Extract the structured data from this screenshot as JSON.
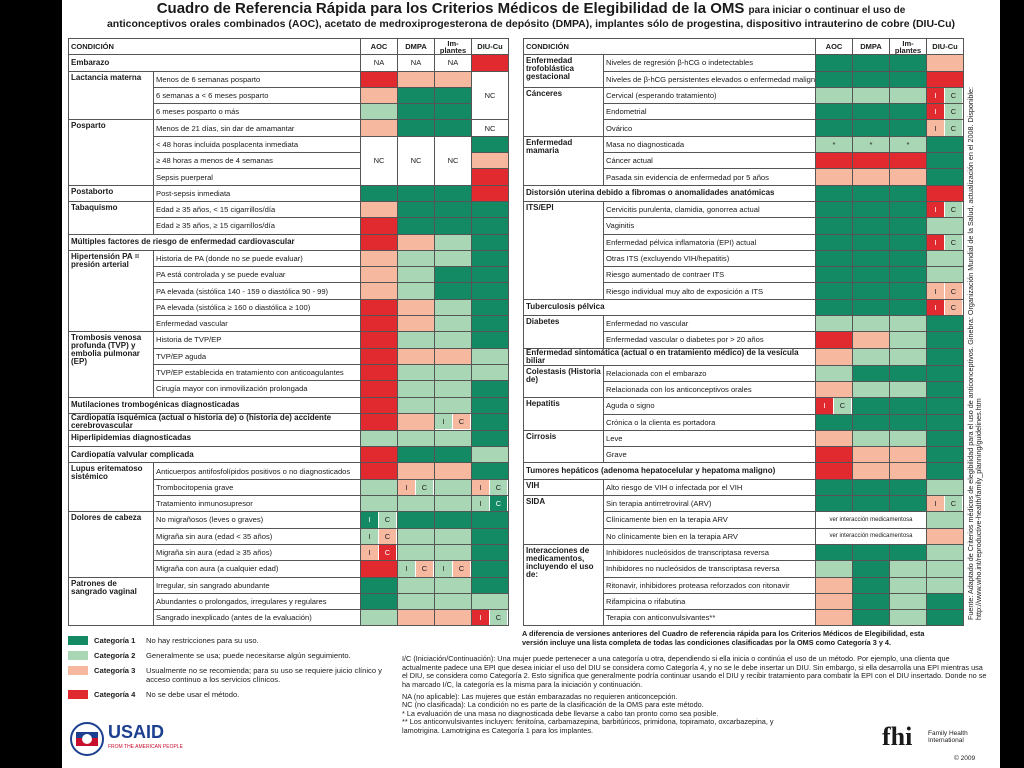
{
  "header": {
    "title": "Cuadro de Referencia Rápida para los Criterios Médicos de Elegibilidad de la OMS",
    "title_tail": "para iniciar o continuar el uso de",
    "subtitle": "anticonceptivos orales combinados (AOC), acetato de medroxiprogesterona de depósito (DMPA), implantes sólo de progestina, dispositivo intrauterino de cobre (DIU-Cu)"
  },
  "columns": [
    "CONDICIÓN",
    "AOC",
    "DMPA",
    "Im- plantes",
    "DIU-Cu"
  ],
  "left_table": {
    "rows": [
      {
        "group": "Embarazo",
        "cells": [
          {
            "text": "NA"
          },
          {
            "text": "NA"
          },
          {
            "text": "NA"
          },
          4
        ]
      },
      {
        "group": "Lactancia materna",
        "group_rows": 3,
        "condition": "Menos de 6 semanas posparto",
        "cells": [
          4,
          3,
          3,
          {
            "text": "NC",
            "rows": 3
          }
        ]
      },
      {
        "condition": "6 semanas a < 6 meses posparto",
        "cells": [
          3,
          1,
          1
        ]
      },
      {
        "condition": "6 meses posparto o más",
        "cells": [
          2,
          1,
          1
        ]
      },
      {
        "group": "Posparto",
        "group_rows": 4,
        "condition": "Menos de 21 días, sin dar de amamantar",
        "cells": [
          3,
          1,
          1,
          {
            "text": "NC"
          }
        ]
      },
      {
        "condition": "< 48 horas incluida posplacenta inmediata",
        "cells": [
          {
            "text": "NC",
            "rows": 3
          },
          {
            "text": "NC",
            "rows": 3
          },
          {
            "text": "NC",
            "rows": 3
          },
          1
        ]
      },
      {
        "condition": "≥ 48 horas a menos de 4 semanas",
        "cells": [
          3
        ]
      },
      {
        "condition": "Sepsis puerperal",
        "cells": [
          4
        ]
      },
      {
        "group": "Postaborto",
        "condition": "Post-sepsis inmediata",
        "cells": [
          1,
          1,
          1,
          4
        ]
      },
      {
        "group": "Tabaquismo",
        "group_rows": 2,
        "condition": "Edad ≥ 35 años, < 15 cigarrillos/día",
        "cells": [
          3,
          1,
          1,
          1
        ]
      },
      {
        "condition": "Edad ≥ 35 años, ≥ 15 cigarrillos/día",
        "cells": [
          4,
          1,
          1,
          1
        ]
      },
      {
        "group": "Múltiples factores de riesgo de enfermedad cardiovascular",
        "cells": [
          4,
          3,
          2,
          1
        ]
      },
      {
        "group": "Hipertensión PA = presión arterial",
        "group_rows": 5,
        "condition": "Historia de PA (donde no se puede evaluar)",
        "cells": [
          3,
          2,
          2,
          1
        ]
      },
      {
        "condition": "PA está controlada y se puede evaluar",
        "cells": [
          3,
          2,
          1,
          1
        ]
      },
      {
        "condition": "PA elevada (sistólica 140 - 159 o diastólica 90 - 99)",
        "cells": [
          3,
          2,
          1,
          1
        ]
      },
      {
        "condition": "PA elevada (sistólica ≥ 160 o diastólica ≥ 100)",
        "cells": [
          4,
          3,
          2,
          1
        ]
      },
      {
        "condition": "Enfermedad vascular",
        "cells": [
          4,
          3,
          2,
          1
        ]
      },
      {
        "group": "Trombosis venosa profunda (TVP) y embolia pulmonar (EP)",
        "group_rows": 4,
        "condition": "Historia de TVP/EP",
        "cells": [
          4,
          2,
          2,
          1
        ]
      },
      {
        "condition": "TVP/EP aguda",
        "cells": [
          4,
          3,
          3,
          2
        ]
      },
      {
        "condition": "TVP/EP establecida en tratamiento con anticoagulantes",
        "cells": [
          4,
          2,
          2,
          2
        ]
      },
      {
        "condition": "Cirugía mayor con inmovilización prolongada",
        "cells": [
          4,
          2,
          2,
          1
        ]
      },
      {
        "group": "Mutilaciones trombogénicas diagnosticadas",
        "cells": [
          4,
          2,
          2,
          1
        ]
      },
      {
        "group": "Cardiopatía isquémica (actual o historia de) o (historia de) accidente cerebrovascular",
        "cells": [
          4,
          3,
          {
            "parts": [
              {
                "cat": 2,
                "text": "I"
              },
              {
                "cat": 3,
                "text": "C"
              }
            ]
          },
          1
        ]
      },
      {
        "group": "Hiperlipidemias diagnosticadas",
        "cells": [
          2,
          2,
          2,
          1
        ]
      },
      {
        "group": "Cardiopatía valvular complicada",
        "cells": [
          4,
          1,
          1,
          2
        ]
      },
      {
        "group": "Lupus eritematoso sistémico",
        "group_rows": 3,
        "condition": "Anticuerpos antifosfolípidos positivos o no diagnosticados",
        "cells": [
          4,
          3,
          3,
          1
        ]
      },
      {
        "condition": "Trombocitopenia grave",
        "cells": [
          2,
          {
            "parts": [
              {
                "cat": 3,
                "text": "I"
              },
              {
                "cat": 2,
                "text": "C"
              }
            ]
          },
          2,
          {
            "parts": [
              {
                "cat": 3,
                "text": "I"
              },
              {
                "cat": 2,
                "text": "C"
              }
            ]
          }
        ]
      },
      {
        "condition": "Tratamiento inmunosupresor",
        "cells": [
          2,
          2,
          2,
          {
            "parts": [
              {
                "cat": 2,
                "text": "I"
              },
              {
                "cat": 1,
                "text": "C"
              }
            ]
          }
        ]
      },
      {
        "group": "Dolores de cabeza",
        "group_rows": 4,
        "condition": "No migrañosos (leves o graves)",
        "cells": [
          {
            "parts": [
              {
                "cat": 1,
                "text": "I"
              },
              {
                "cat": 2,
                "text": "C"
              }
            ]
          },
          1,
          1,
          1
        ]
      },
      {
        "condition": "Migraña sin aura (edad < 35 años)",
        "cells": [
          {
            "parts": [
              {
                "cat": 2,
                "text": "I"
              },
              {
                "cat": 3,
                "text": "C"
              }
            ]
          },
          2,
          2,
          1
        ]
      },
      {
        "condition": "Migraña sin aura (edad ≥ 35 años)",
        "cells": [
          {
            "parts": [
              {
                "cat": 3,
                "text": "I"
              },
              {
                "cat": 4,
                "text": "C"
              }
            ]
          },
          2,
          2,
          1
        ]
      },
      {
        "condition": "Migraña con aura (a cualquier edad)",
        "cells": [
          4,
          {
            "parts": [
              {
                "cat": 2,
                "text": "I"
              },
              {
                "cat": 3,
                "text": "C"
              }
            ]
          },
          {
            "parts": [
              {
                "cat": 2,
                "text": "I"
              },
              {
                "cat": 3,
                "text": "C"
              }
            ]
          },
          1
        ]
      },
      {
        "group": "Patrones de sangrado vaginal",
        "group_rows": 3,
        "condition": "Irregular, sin sangrado abundante",
        "cells": [
          1,
          2,
          2,
          1
        ]
      },
      {
        "condition": "Abundantes o prolongados, irregulares y regulares",
        "cells": [
          1,
          2,
          2,
          2
        ]
      },
      {
        "condition": "Sangrado inexplicado (antes de la evaluación)",
        "cells": [
          2,
          3,
          3,
          {
            "parts": [
              {
                "cat": 4,
                "text": "I"
              },
              {
                "cat": 2,
                "text": "C"
              }
            ]
          }
        ]
      }
    ]
  },
  "right_table": {
    "rows": [
      {
        "group": "Enfermedad trofoblástica gestacional",
        "group_rows": 2,
        "condition": "Niveles de regresión β-hCG o indetectables",
        "cells": [
          1,
          1,
          1,
          3
        ]
      },
      {
        "condition": "Niveles de β-hCG persistentes elevados o enfermedad maligna",
        "cells": [
          1,
          1,
          1,
          4
        ]
      },
      {
        "group": "Cánceres",
        "group_rows": 3,
        "condition": "Cervical (esperando tratamiento)",
        "cells": [
          2,
          2,
          2,
          {
            "parts": [
              {
                "cat": 4,
                "text": "I"
              },
              {
                "cat": 2,
                "text": "C"
              }
            ]
          }
        ]
      },
      {
        "condition": "Endometrial",
        "cells": [
          1,
          1,
          1,
          {
            "parts": [
              {
                "cat": 4,
                "text": "I"
              },
              {
                "cat": 2,
                "text": "C"
              }
            ]
          }
        ]
      },
      {
        "condition": "Ovárico",
        "cells": [
          1,
          1,
          1,
          {
            "parts": [
              {
                "cat": 3,
                "text": "I"
              },
              {
                "cat": 2,
                "text": "C"
              }
            ]
          }
        ]
      },
      {
        "group": "Enfermedad mamaria",
        "group_rows": 3,
        "condition": "Masa no diagnosticada",
        "cells": [
          {
            "cat": 2,
            "text": "*"
          },
          {
            "cat": 2,
            "text": "*"
          },
          {
            "cat": 2,
            "text": "*"
          },
          1
        ]
      },
      {
        "condition": "Cáncer actual",
        "cells": [
          4,
          4,
          4,
          1
        ]
      },
      {
        "condition": "Pasada sin evidencia de enfermedad por 5 años",
        "cells": [
          3,
          3,
          3,
          1
        ]
      },
      {
        "group": "Distorsión uterina debido a fibromas o anomalidades anatómicas",
        "cells": [
          1,
          1,
          1,
          4
        ]
      },
      {
        "group": "ITS/EPI",
        "group_rows": 6,
        "condition": "Cervicitis purulenta, clamidia, gonorrea actual",
        "cells": [
          1,
          1,
          1,
          {
            "parts": [
              {
                "cat": 4,
                "text": "I"
              },
              {
                "cat": 2,
                "text": "C"
              }
            ]
          }
        ]
      },
      {
        "condition": "Vaginitis",
        "cells": [
          1,
          1,
          1,
          2
        ]
      },
      {
        "condition": "Enfermedad pélvica inflamatoria (EPI) actual",
        "cells": [
          1,
          1,
          1,
          {
            "parts": [
              {
                "cat": 4,
                "text": "I"
              },
              {
                "cat": 2,
                "text": "C"
              }
            ]
          }
        ]
      },
      {
        "condition": "Otras ITS (excluyendo VIH/hepatitis)",
        "cells": [
          1,
          1,
          1,
          2
        ]
      },
      {
        "condition": "Riesgo aumentado de contraer ITS",
        "cells": [
          1,
          1,
          1,
          2
        ]
      },
      {
        "condition": "Riesgo individual muy alto de exposición a ITS",
        "cells": [
          1,
          1,
          1,
          {
            "parts": [
              {
                "cat": 3,
                "text": "I"
              },
              {
                "cat": 3,
                "text": "C"
              }
            ]
          }
        ]
      },
      {
        "group": "Tuberculosis pélvica",
        "cells": [
          1,
          1,
          1,
          {
            "parts": [
              {
                "cat": 4,
                "text": "I"
              },
              {
                "cat": 3,
                "text": "C"
              }
            ]
          }
        ]
      },
      {
        "group": "Diabetes",
        "group_rows": 2,
        "condition": "Enfermedad no vascular",
        "cells": [
          2,
          2,
          2,
          1
        ]
      },
      {
        "condition": "Enfermedad vascular o diabetes por > 20 años",
        "cells": [
          4,
          3,
          2,
          1
        ]
      },
      {
        "group": "Enfermedad sintomática (actual o en tratamiento médico) de la vesícula biliar",
        "cells": [
          3,
          2,
          2,
          1
        ]
      },
      {
        "group": "Colestasis (Historia de)",
        "group_rows": 2,
        "condition": "Relacionada con el embarazo",
        "cells": [
          2,
          1,
          1,
          1
        ]
      },
      {
        "condition": "Relacionada con los anticonceptivos orales",
        "cells": [
          3,
          2,
          2,
          1
        ]
      },
      {
        "group": "Hepatitis",
        "group_rows": 2,
        "condition": "Aguda o signo",
        "cells": [
          {
            "parts": [
              {
                "cat": 4,
                "text": "I"
              },
              {
                "cat": 2,
                "text": "C"
              }
            ]
          },
          1,
          1,
          1
        ]
      },
      {
        "condition": "Crónica o la clienta es portadora",
        "cells": [
          1,
          1,
          1,
          1
        ]
      },
      {
        "group": "Cirrosis",
        "group_rows": 2,
        "condition": "Leve",
        "cells": [
          3,
          2,
          2,
          1
        ]
      },
      {
        "condition": "Grave",
        "cells": [
          4,
          3,
          3,
          1
        ]
      },
      {
        "group": "Tumores hepáticos (adenoma hepatocelular y hepatoma maligno)",
        "cells": [
          4,
          3,
          3,
          1
        ]
      },
      {
        "group": "VIH",
        "condition": "Alto riesgo de VIH o infectada por el VIH",
        "cells": [
          1,
          1,
          1,
          2
        ]
      },
      {
        "group": "SIDA",
        "group_rows": 3,
        "condition": "Sin terapia antirretroviral (ARV)",
        "cells": [
          1,
          1,
          1,
          {
            "parts": [
              {
                "cat": 3,
                "text": "I"
              },
              {
                "cat": 2,
                "text": "C"
              }
            ]
          }
        ]
      },
      {
        "condition": "Clínicamente bien en la terapia ARV",
        "cells": [
          {
            "text": "ver interacción medicamentosa",
            "cols": 3
          },
          2
        ]
      },
      {
        "condition": "No clínicamente bien en la terapia ARV",
        "cells": [
          {
            "text": "ver interacción medicamentosa",
            "cols": 3
          },
          3
        ]
      },
      {
        "group": "Interacciones de medicamentos, incluyendo el uso de:",
        "group_rows": 5,
        "condition": "Inhibidores nucleósidos de transcriptasa reversa",
        "cells": [
          1,
          1,
          1,
          2
        ]
      },
      {
        "condition": "Inhibidores no nucleósidos de transcriptasa reversa",
        "cells": [
          2,
          1,
          2,
          2
        ]
      },
      {
        "condition": "Ritonavir, inhibidores proteasa reforzados con ritonavir",
        "cells": [
          3,
          1,
          2,
          2
        ]
      },
      {
        "condition": "Rifampicina o rifabutina",
        "cells": [
          3,
          1,
          2,
          1
        ]
      },
      {
        "condition": "Terapia con anticonvulsivantes**",
        "cells": [
          3,
          1,
          2,
          1
        ]
      }
    ]
  },
  "legend": [
    {
      "label": "Categoría 1",
      "text": "No hay restricciones para su uso.",
      "color": "#138a63"
    },
    {
      "label": "Categoría 2",
      "text": "Generalmente se usa; puede necesitarse algún seguimiento.",
      "color": "#a9d7b5"
    },
    {
      "label": "Categoría 3",
      "text": "Usualmente no se recomienda; para su uso se requiere juicio clínico y acceso continuo a los servicios clínicos.",
      "color": "#f6b9a0"
    },
    {
      "label": "Categoría 4",
      "text": "No se debe usar el método.",
      "color": "#e02a2f"
    }
  ],
  "notes": {
    "main": "A diferencia de versiones anteriores del Cuadro de referencia rápida para los Criterios Médicos de Elegibilidad, esta versión incluye una lista completa de todas las condiciones clasificadas por la OMS como Categoría 3 y 4.",
    "ic": "I/C (Iniciación/Continuación): Una mujer puede pertenecer a una categoría u otra, dependiendo si ella inicia o continúa el uso de un método. Por ejemplo, una clienta que actualmente padece una EPI que desea iniciar el uso del DIU se considera como Categoría 4, y no se le debe insertar un DIU. Sin embargo, si ella desarrolla una EPI mientras usa el DIU, se considera como Categoría 2. Esto significa que generalmente podría continuar usando el DIU y recibir tratamiento para combatir la EPI con el DIU insertado. Donde no se ha marcado I/C, la categoría es la misma para la iniciación y continuación.",
    "na": "NA (no aplicable): Las mujeres que están embarazadas no requieren anticoncepción.",
    "nc": "NC (no clasificada): La condición no es parte de la clasificación de la OMS para este método.",
    "star": "*   La evaluación de una masa no diagnosticada debe llevarse a cabo tan pronto como sea posible.",
    "dstar": "** Los anticonvulsivantes incluyen: fenitoína, carbamazepina, barbitúricos, primidona, topiramato, oxcarbazepina, y lamotrigina. Lamotrigina es Categoría 1 para los implantes."
  },
  "source": "Fuente: Adaptado de Criterios médicos de elegibilidad para el uso de anticonceptivos. Ginebra: Organización Mundial de la Salud, actualización en el 2008. Disponible: http://www.who.int/reproductive-health/family_planning/guidelines.htm",
  "logos": {
    "usaid": "USAID",
    "usaid_tag": "FROM THE AMERICAN PEOPLE",
    "fhi": "fhi",
    "fhi_name": "Family Health International",
    "fhi_year": "© 2009"
  }
}
